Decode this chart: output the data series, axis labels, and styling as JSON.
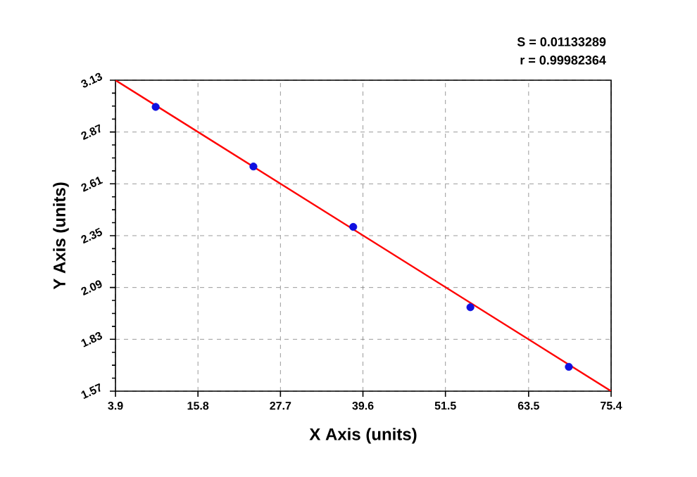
{
  "chart_data": {
    "type": "scatter",
    "xlabel": "X Axis (units)",
    "ylabel": "Y Axis (units)",
    "annotations": [
      "S = 0.01133289",
      "r = 0.99982364"
    ],
    "xlim": [
      3.9,
      75.4
    ],
    "ylim": [
      1.57,
      3.13
    ],
    "xticks": [
      3.9,
      15.8,
      27.7,
      39.6,
      51.5,
      63.5,
      75.4
    ],
    "yticks": [
      1.57,
      1.83,
      2.09,
      2.35,
      2.61,
      2.87,
      3.13
    ],
    "grid": true,
    "series": [
      {
        "color": "#1010e0",
        "marker": "circle",
        "x": [
          9.7,
          23.8,
          38.2,
          55.1,
          69.3
        ],
        "values": [
          2.996,
          2.697,
          2.394,
          1.991,
          1.692
        ]
      },
      {
        "type": "line",
        "color": "#ff0000",
        "marker": "none",
        "line_style": "solid",
        "x": [
          3.9,
          75.4
        ],
        "values": [
          3.13,
          1.57
        ]
      }
    ]
  }
}
